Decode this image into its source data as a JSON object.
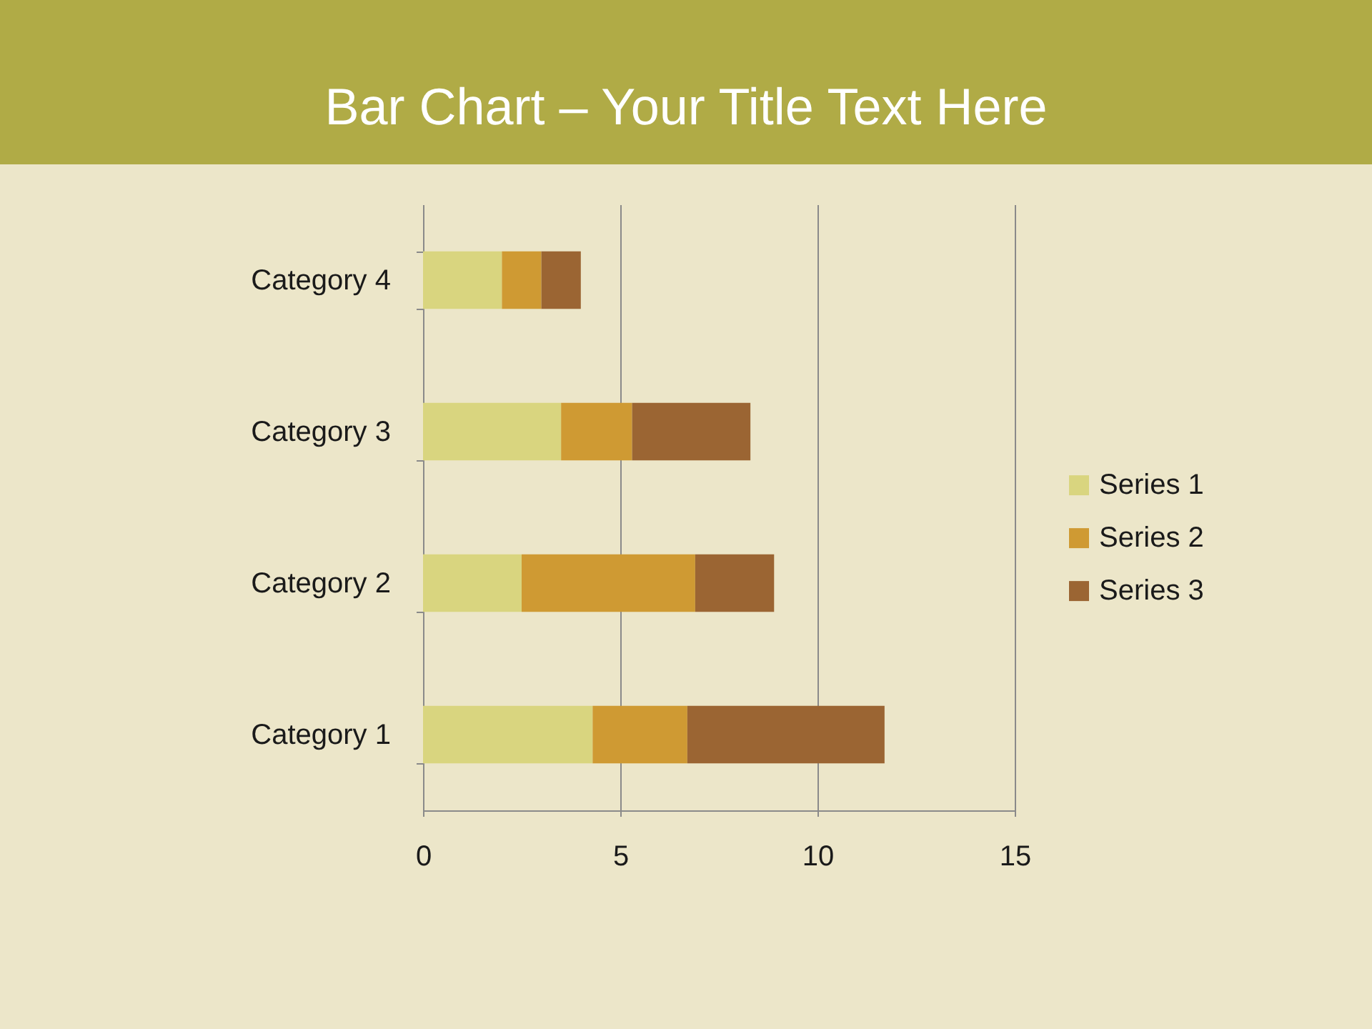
{
  "chart_data": {
    "type": "bar",
    "orientation": "horizontal",
    "stacked": true,
    "title": "Bar Chart – Your Title Text Here",
    "categories": [
      "Category 4",
      "Category 3",
      "Category 2",
      "Category 1"
    ],
    "series": [
      {
        "name": "Series 1",
        "color": "#d9d57f",
        "values": [
          2,
          3.5,
          2.5,
          4.3
        ]
      },
      {
        "name": "Series 2",
        "color": "#cf9a33",
        "values": [
          1,
          1.8,
          4.4,
          2.4
        ]
      },
      {
        "name": "Series 3",
        "color": "#9b6533",
        "values": [
          1,
          3,
          2,
          5
        ]
      }
    ],
    "xlim": [
      0,
      15
    ],
    "xticks": [
      0,
      5,
      10,
      15
    ],
    "grid": "x",
    "legend": "right"
  }
}
